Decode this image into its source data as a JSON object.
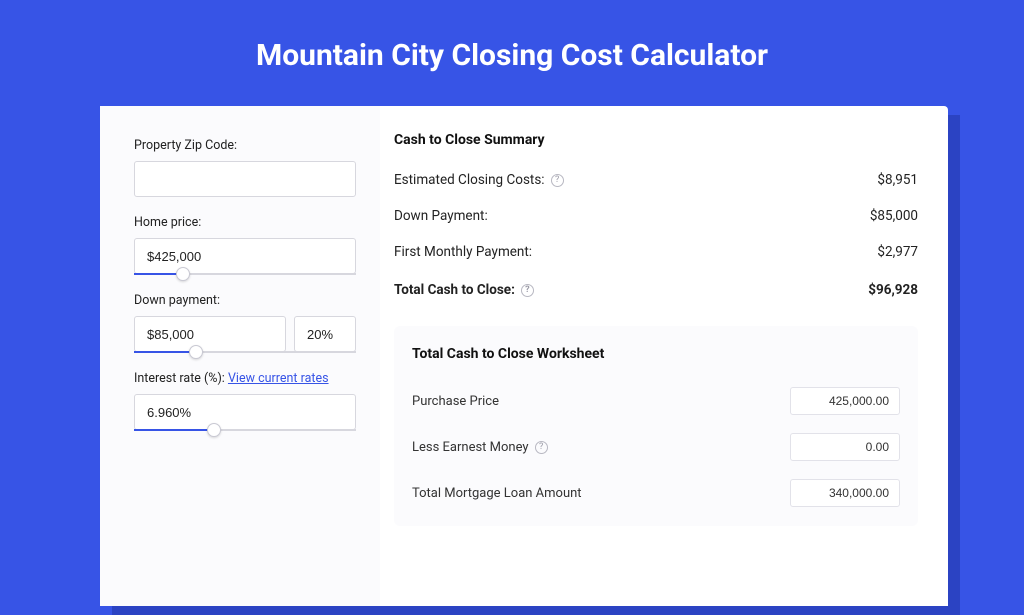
{
  "title": "Mountain City Closing Cost Calculator",
  "colors": {
    "page_bg": "#3754e6",
    "shadow": "#2b43c3",
    "card_bg": "#ffffff",
    "panel_bg": "#fbfbfd",
    "accent": "#3754e6",
    "border": "#d7d7de",
    "text": "#222222",
    "muted": "#9a9aa6"
  },
  "form": {
    "zip_label": "Property Zip Code:",
    "zip_value": "",
    "home_price_label": "Home price:",
    "home_price_value": "$425,000",
    "home_price_slider": {
      "fill_pct": 22,
      "thumb_pct": 22
    },
    "down_payment_label": "Down payment:",
    "down_payment_amount": "$85,000",
    "down_payment_pct": "20%",
    "down_payment_slider": {
      "fill_pct": 28,
      "thumb_pct": 28
    },
    "interest_label": "Interest rate (%):",
    "interest_link": "View current rates",
    "interest_value": "6.960%",
    "interest_slider": {
      "fill_pct": 36,
      "thumb_pct": 36
    }
  },
  "summary": {
    "header": "Cash to Close Summary",
    "rows": [
      {
        "label": "Estimated Closing Costs:",
        "help": true,
        "value": "$8,951"
      },
      {
        "label": "Down Payment:",
        "help": false,
        "value": "$85,000"
      },
      {
        "label": "First Monthly Payment:",
        "help": false,
        "value": "$2,977"
      }
    ],
    "total": {
      "label": "Total Cash to Close:",
      "help": true,
      "value": "$96,928"
    }
  },
  "worksheet": {
    "header": "Total Cash to Close Worksheet",
    "rows": [
      {
        "label": "Purchase Price",
        "help": false,
        "value": "425,000.00"
      },
      {
        "label": "Less Earnest Money",
        "help": true,
        "value": "0.00"
      },
      {
        "label": "Total Mortgage Loan Amount",
        "help": false,
        "value": "340,000.00"
      }
    ]
  }
}
